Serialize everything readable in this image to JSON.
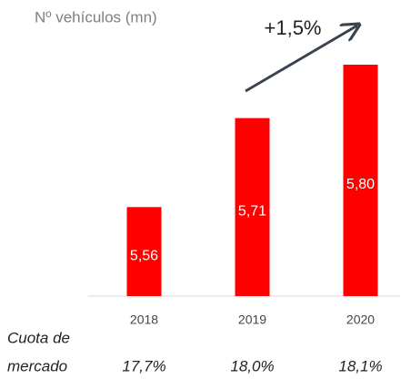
{
  "chart_data": {
    "type": "bar",
    "axis_label": "Nº vehículos (mn)",
    "annotation": "+1,5%",
    "categories": [
      "2018",
      "2019",
      "2020"
    ],
    "values": [
      5.56,
      5.71,
      5.8
    ],
    "value_labels": [
      "5,56",
      "5,71",
      "5,80"
    ],
    "color": "#ff0000",
    "ylim": [
      5.41,
      5.8
    ],
    "row_label": [
      "Cuota de",
      "mercado"
    ],
    "share_labels": [
      "17,7%",
      "18,0%",
      "18,1%"
    ]
  }
}
